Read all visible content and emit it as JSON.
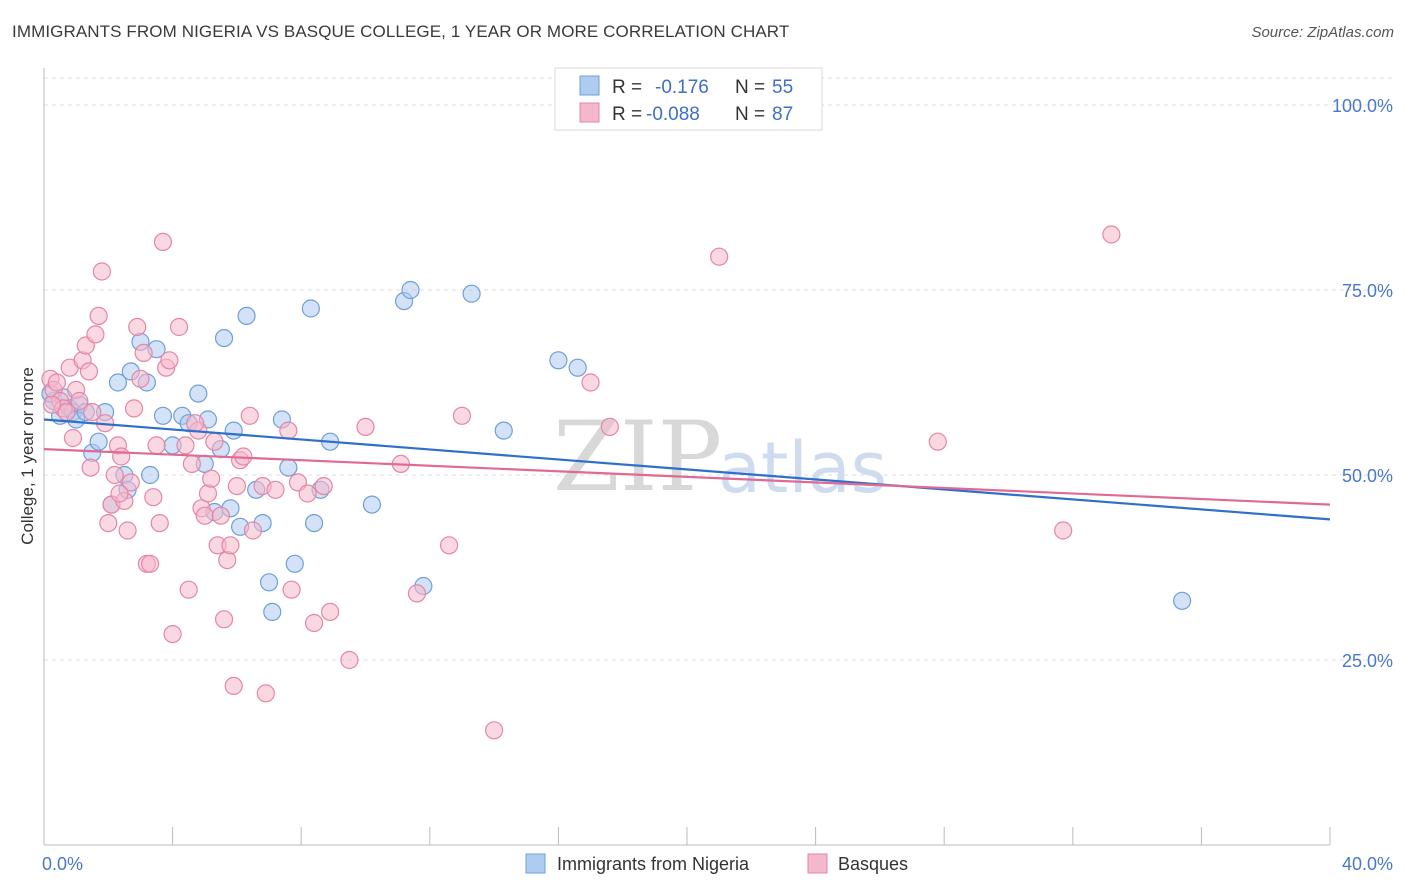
{
  "title": "IMMIGRANTS FROM NIGERIA VS BASQUE COLLEGE, 1 YEAR OR MORE CORRELATION CHART",
  "source": "Source: ZipAtlas.com",
  "watermark": {
    "zip": "ZIP",
    "atlas": "atlas"
  },
  "legend_top": [
    {
      "r_label": "R =",
      "r_value": "-0.176",
      "n_label": "N =",
      "n_value": "55"
    },
    {
      "r_label": "R =",
      "r_value": "-0.088",
      "n_label": "N =",
      "n_value": "87"
    }
  ],
  "colors": {
    "blue_fill": "#aecbf0",
    "blue_stroke": "#6f9fd8",
    "blue_line": "#2f6fcc",
    "pink_fill": "#f5b8cb",
    "pink_stroke": "#e486a6",
    "pink_line": "#e06a93",
    "tick_text": "#4a78c8",
    "grid": "#dcdcdc"
  },
  "chart_data": {
    "type": "scatter",
    "xlabel": "",
    "ylabel": "College, 1 year or more",
    "xlim": [
      0,
      40
    ],
    "ylim": [
      0,
      105
    ],
    "x_tick_labels": [
      "0.0%",
      "40.0%"
    ],
    "y_ticks": [
      25,
      50,
      75,
      100
    ],
    "y_tick_labels": [
      "25.0%",
      "50.0%",
      "75.0%",
      "100.0%"
    ],
    "grid": true,
    "legend_position": "top-center",
    "series": [
      {
        "name": "Immigrants from Nigeria",
        "color": "#aecbf0",
        "trend": {
          "x0": 0,
          "y0": 57.5,
          "x1": 40,
          "y1": 44.0
        },
        "points": [
          [
            0.3,
            60.0
          ],
          [
            0.5,
            58.0
          ],
          [
            0.6,
            60.5
          ],
          [
            0.8,
            59.0
          ],
          [
            0.9,
            58.5
          ],
          [
            1.1,
            59.5
          ],
          [
            1.0,
            57.5
          ],
          [
            1.3,
            58.5
          ],
          [
            1.5,
            53.0
          ],
          [
            1.7,
            54.5
          ],
          [
            1.9,
            58.5
          ],
          [
            2.1,
            46.0
          ],
          [
            2.3,
            62.5
          ],
          [
            2.5,
            50.0
          ],
          [
            2.6,
            48.0
          ],
          [
            2.7,
            64.0
          ],
          [
            3.0,
            68.0
          ],
          [
            3.2,
            62.5
          ],
          [
            3.3,
            50.0
          ],
          [
            3.5,
            67.0
          ],
          [
            3.7,
            58.0
          ],
          [
            4.0,
            54.0
          ],
          [
            4.3,
            58.0
          ],
          [
            4.5,
            57.0
          ],
          [
            4.8,
            61.0
          ],
          [
            5.0,
            51.5
          ],
          [
            5.1,
            57.5
          ],
          [
            5.3,
            45.0
          ],
          [
            5.5,
            53.5
          ],
          [
            5.6,
            68.5
          ],
          [
            5.8,
            45.5
          ],
          [
            5.9,
            56.0
          ],
          [
            6.1,
            43.0
          ],
          [
            6.3,
            71.5
          ],
          [
            6.6,
            48.0
          ],
          [
            6.8,
            43.5
          ],
          [
            7.0,
            35.5
          ],
          [
            7.1,
            31.5
          ],
          [
            7.4,
            57.5
          ],
          [
            7.6,
            51.0
          ],
          [
            7.8,
            38.0
          ],
          [
            8.3,
            72.5
          ],
          [
            8.4,
            43.5
          ],
          [
            8.6,
            48.0
          ],
          [
            8.9,
            54.5
          ],
          [
            10.2,
            46.0
          ],
          [
            11.2,
            73.5
          ],
          [
            11.4,
            75.0
          ],
          [
            11.8,
            35.0
          ],
          [
            13.3,
            74.5
          ],
          [
            14.3,
            56.0
          ],
          [
            16.0,
            65.5
          ],
          [
            16.6,
            64.5
          ],
          [
            35.4,
            33.0
          ],
          [
            0.2,
            61.0
          ]
        ]
      },
      {
        "name": "Basques",
        "color": "#f5b8cb",
        "trend": {
          "x0": 0,
          "y0": 53.5,
          "x1": 40,
          "y1": 46.0
        },
        "points": [
          [
            0.2,
            63.0
          ],
          [
            0.3,
            61.5
          ],
          [
            0.4,
            62.5
          ],
          [
            0.5,
            60.0
          ],
          [
            0.6,
            59.0
          ],
          [
            0.7,
            58.5
          ],
          [
            0.8,
            64.5
          ],
          [
            0.9,
            55.0
          ],
          [
            1.0,
            61.5
          ],
          [
            1.1,
            60.0
          ],
          [
            1.2,
            65.5
          ],
          [
            1.3,
            67.5
          ],
          [
            1.4,
            64.0
          ],
          [
            1.5,
            58.5
          ],
          [
            1.6,
            69.0
          ],
          [
            1.7,
            71.5
          ],
          [
            1.8,
            77.5
          ],
          [
            1.9,
            57.0
          ],
          [
            2.0,
            43.5
          ],
          [
            2.1,
            46.0
          ],
          [
            2.2,
            50.0
          ],
          [
            2.3,
            54.0
          ],
          [
            2.4,
            52.5
          ],
          [
            2.5,
            46.5
          ],
          [
            2.6,
            42.5
          ],
          [
            2.7,
            49.0
          ],
          [
            2.8,
            59.0
          ],
          [
            2.9,
            70.0
          ],
          [
            3.0,
            63.0
          ],
          [
            3.1,
            66.5
          ],
          [
            3.2,
            38.0
          ],
          [
            3.3,
            38.0
          ],
          [
            3.4,
            47.0
          ],
          [
            3.5,
            54.0
          ],
          [
            3.6,
            43.5
          ],
          [
            3.7,
            81.5
          ],
          [
            3.8,
            64.5
          ],
          [
            3.9,
            65.5
          ],
          [
            4.0,
            28.5
          ],
          [
            4.2,
            70.0
          ],
          [
            4.4,
            54.0
          ],
          [
            4.5,
            34.5
          ],
          [
            4.6,
            51.5
          ],
          [
            4.8,
            56.0
          ],
          [
            4.9,
            45.5
          ],
          [
            5.0,
            44.5
          ],
          [
            5.1,
            47.5
          ],
          [
            5.2,
            49.5
          ],
          [
            5.3,
            54.5
          ],
          [
            5.4,
            40.5
          ],
          [
            5.5,
            44.5
          ],
          [
            5.6,
            30.5
          ],
          [
            5.7,
            38.5
          ],
          [
            5.8,
            40.5
          ],
          [
            5.9,
            21.5
          ],
          [
            6.0,
            48.5
          ],
          [
            6.1,
            52.0
          ],
          [
            6.2,
            52.5
          ],
          [
            6.4,
            58.0
          ],
          [
            6.5,
            42.5
          ],
          [
            6.8,
            48.5
          ],
          [
            6.9,
            20.5
          ],
          [
            7.2,
            48.0
          ],
          [
            7.6,
            56.0
          ],
          [
            7.7,
            34.5
          ],
          [
            7.9,
            49.0
          ],
          [
            8.2,
            47.5
          ],
          [
            8.4,
            30.0
          ],
          [
            8.7,
            48.5
          ],
          [
            8.9,
            31.5
          ],
          [
            9.5,
            25.0
          ],
          [
            10.0,
            56.5
          ],
          [
            11.1,
            51.5
          ],
          [
            11.6,
            34.0
          ],
          [
            12.6,
            40.5
          ],
          [
            13.0,
            58.0
          ],
          [
            14.0,
            15.5
          ],
          [
            17.0,
            62.5
          ],
          [
            17.6,
            56.5
          ],
          [
            21.0,
            79.5
          ],
          [
            27.8,
            54.5
          ],
          [
            31.7,
            42.5
          ],
          [
            33.2,
            82.5
          ],
          [
            0.25,
            59.5
          ],
          [
            1.45,
            51.0
          ],
          [
            2.35,
            47.5
          ],
          [
            4.7,
            57.0
          ]
        ]
      }
    ]
  }
}
